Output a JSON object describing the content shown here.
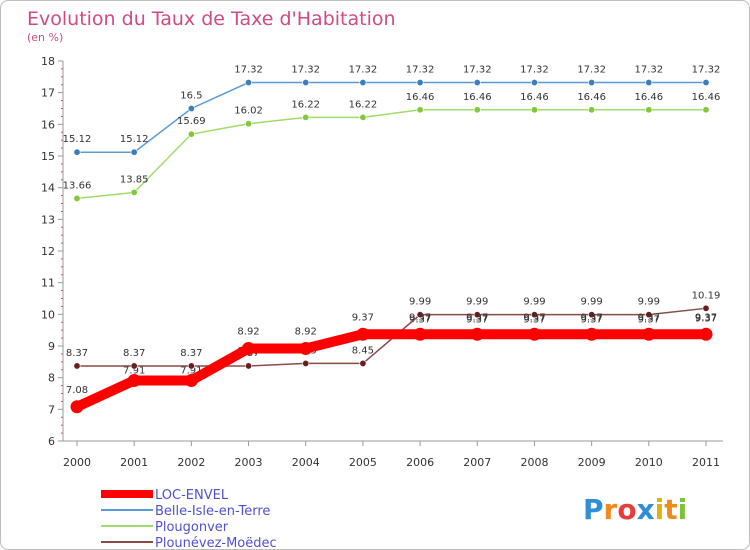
{
  "colors": {
    "title": "#d04a86",
    "legend_text": "#5050d0",
    "axis": "#999999",
    "minor_tick": "#d04a86"
  },
  "chart_data": {
    "type": "line",
    "title": "Evolution du Taux de Taxe d'Habitation",
    "subtitle": "(en %)",
    "xlabel": "",
    "ylabel": "",
    "x": [
      "2000",
      "2001",
      "2002",
      "2003",
      "2004",
      "2005",
      "2006",
      "2007",
      "2008",
      "2009",
      "2010",
      "2011"
    ],
    "ylim": [
      6,
      18
    ],
    "yticks": [
      "6",
      "7",
      "8",
      "9",
      "10",
      "11",
      "12",
      "13",
      "14",
      "15",
      "16",
      "17",
      "18"
    ],
    "grid": false,
    "legend": "bottom-left",
    "series": [
      {
        "name": "LOC-ENVEL",
        "color": "#ff0000",
        "values": [
          7.08,
          7.91,
          7.91,
          8.92,
          8.92,
          9.37,
          9.37,
          9.37,
          9.37,
          9.37,
          9.37,
          9.37
        ],
        "labels": [
          "7.08",
          "",
          "",
          "8.92",
          "8.92",
          "9.37",
          "9.37",
          "9.37",
          "9.37",
          "9.37",
          "9.37",
          "9.37"
        ],
        "thick": true
      },
      {
        "name": "Belle-Isle-en-Terre",
        "color": "#5b9bd5",
        "marker": "#3a7ebc",
        "values": [
          15.12,
          15.12,
          16.5,
          17.32,
          17.32,
          17.32,
          17.32,
          17.32,
          17.32,
          17.32,
          17.32,
          17.32
        ],
        "labels": [
          "15.12",
          "15.12",
          "16.5",
          "17.32",
          "17.32",
          "17.32",
          "17.32",
          "17.32",
          "17.32",
          "17.32",
          "17.32",
          "17.32"
        ]
      },
      {
        "name": "Plougonver",
        "color": "#9fdc6a",
        "marker": "#7fc93a",
        "values": [
          13.66,
          13.85,
          15.69,
          16.02,
          16.22,
          16.22,
          16.46,
          16.46,
          16.46,
          16.46,
          16.46,
          16.46
        ],
        "labels": [
          "13.66",
          "13.85",
          "15.69",
          "16.02",
          "16.22",
          "16.22",
          "16.46",
          "16.46",
          "16.46",
          "16.46",
          "16.46",
          "16.46"
        ]
      },
      {
        "name": "Plounévez-Moëdec",
        "color": "#8a4a4a",
        "marker": "#6a1f1f",
        "values": [
          8.37,
          8.37,
          8.37,
          8.37,
          8.45,
          8.45,
          9.99,
          9.99,
          9.99,
          9.99,
          9.99,
          10.19
        ],
        "labels": [
          "8.37",
          "8.37",
          "8.37",
          "8.37",
          "8.45",
          "8.45",
          "9.99",
          "9.99",
          "9.99",
          "9.99",
          "9.99",
          "10.19"
        ]
      }
    ],
    "overlapped_labels": [
      "7.91",
      "7.91",
      "8.37",
      "8.45",
      "9.37",
      "9.37",
      "9.37",
      "9.37",
      "9.37",
      "9.37"
    ]
  },
  "brand": {
    "letters": [
      "P",
      "r",
      "o",
      "x",
      "i",
      "t",
      "i"
    ],
    "colors": [
      "#2f8ed8",
      "#f08a1c",
      "#e83c3c",
      "#2f8ed8",
      "#e0b010",
      "#f08a1c",
      "#7cc23a"
    ]
  }
}
